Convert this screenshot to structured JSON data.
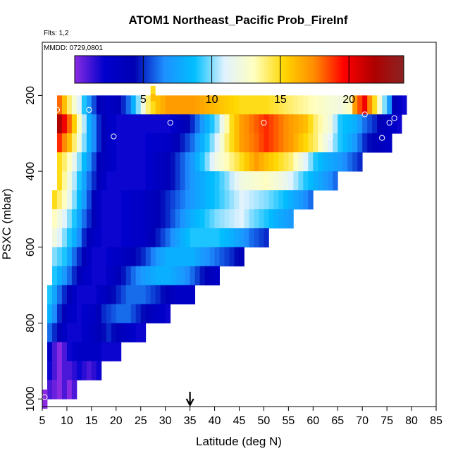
{
  "chart_data": {
    "type": "heatmap",
    "title": "ATOM1 Northeast_Pacific Prob_FireInf",
    "notes": [
      "Flts: 1,2",
      "MMDD: 0729,0801"
    ],
    "xlabel": "Latitude (deg N)",
    "ylabel": "PSXC (mbar)",
    "xlim": [
      5,
      85
    ],
    "ylim": [
      1020,
      60
    ],
    "y_reversed": true,
    "grid": false,
    "x_ticks": [
      5,
      10,
      15,
      20,
      25,
      30,
      35,
      40,
      45,
      50,
      55,
      60,
      65,
      70,
      75,
      80,
      85
    ],
    "y_ticks": [
      200,
      400,
      600,
      800,
      1000
    ],
    "colorbar": {
      "placement": "top-inside",
      "range": [
        0,
        24
      ],
      "ticks": [
        5,
        10,
        15,
        20
      ],
      "colors": [
        "#8a2be2",
        "#0000cd",
        "#0000b4",
        "#1e90ff",
        "#00bfff",
        "#e0f2ff",
        "#ffffc0",
        "#ffd700",
        "#ff8c00",
        "#ff0000",
        "#b00000",
        "#8b2323"
      ]
    },
    "marker_arrow_x": 35,
    "bin_width_deg": 1,
    "bin_height_mbar": 50,
    "pressure_bins": [
      {
        "p": 225,
        "x0": 8,
        "x1": 78,
        "pts": [
          [
            8,
            18
          ],
          [
            10,
            14
          ],
          [
            12,
            11
          ],
          [
            14,
            7
          ],
          [
            16,
            4
          ],
          [
            18,
            3
          ],
          [
            20,
            4
          ],
          [
            22,
            6
          ],
          [
            24,
            10
          ],
          [
            26,
            14
          ],
          [
            28,
            16
          ],
          [
            30,
            17
          ],
          [
            35,
            17
          ],
          [
            40,
            16
          ],
          [
            45,
            15
          ],
          [
            50,
            15
          ],
          [
            55,
            14
          ],
          [
            60,
            13
          ],
          [
            65,
            12
          ],
          [
            67,
            13
          ],
          [
            68,
            17
          ],
          [
            70,
            20
          ],
          [
            72,
            15
          ],
          [
            74,
            10
          ],
          [
            76,
            4
          ],
          [
            78,
            2
          ]
        ]
      },
      {
        "p": 275,
        "x0": 8,
        "x1": 77,
        "pts": [
          [
            8,
            22
          ],
          [
            10,
            18
          ],
          [
            12,
            13
          ],
          [
            14,
            8
          ],
          [
            16,
            5
          ],
          [
            18,
            3
          ],
          [
            20,
            2
          ],
          [
            22,
            2
          ],
          [
            25,
            2
          ],
          [
            28,
            2
          ],
          [
            30,
            2
          ],
          [
            35,
            5
          ],
          [
            40,
            10
          ],
          [
            43,
            15
          ],
          [
            45,
            17
          ],
          [
            50,
            19
          ],
          [
            55,
            17
          ],
          [
            58,
            16
          ],
          [
            60,
            14
          ],
          [
            63,
            12
          ],
          [
            65,
            9
          ],
          [
            68,
            8
          ],
          [
            70,
            6
          ],
          [
            72,
            5
          ],
          [
            75,
            3
          ],
          [
            77,
            2
          ]
        ]
      },
      {
        "p": 325,
        "x0": 8,
        "x1": 75,
        "pts": [
          [
            8,
            19
          ],
          [
            10,
            16
          ],
          [
            12,
            12
          ],
          [
            14,
            8
          ],
          [
            16,
            5
          ],
          [
            18,
            3
          ],
          [
            20,
            2
          ],
          [
            22,
            2
          ],
          [
            25,
            2
          ],
          [
            30,
            3
          ],
          [
            35,
            6
          ],
          [
            40,
            11
          ],
          [
            42,
            14
          ],
          [
            45,
            17
          ],
          [
            48,
            18
          ],
          [
            50,
            19
          ],
          [
            55,
            17
          ],
          [
            60,
            14
          ],
          [
            62,
            12
          ],
          [
            65,
            9
          ],
          [
            68,
            7
          ],
          [
            70,
            5
          ],
          [
            72,
            4
          ],
          [
            75,
            3
          ]
        ]
      },
      {
        "p": 375,
        "x0": 8,
        "x1": 69,
        "pts": [
          [
            8,
            15
          ],
          [
            10,
            13
          ],
          [
            12,
            10
          ],
          [
            14,
            7
          ],
          [
            16,
            4
          ],
          [
            18,
            3
          ],
          [
            20,
            2
          ],
          [
            25,
            2
          ],
          [
            30,
            4
          ],
          [
            35,
            7
          ],
          [
            38,
            10
          ],
          [
            40,
            12
          ],
          [
            45,
            15
          ],
          [
            48,
            17
          ],
          [
            50,
            16
          ],
          [
            55,
            14
          ],
          [
            58,
            11
          ],
          [
            60,
            9
          ],
          [
            62,
            8
          ],
          [
            65,
            7
          ],
          [
            67,
            6
          ],
          [
            69,
            5
          ]
        ]
      },
      {
        "p": 425,
        "x0": 8,
        "x1": 64,
        "pts": [
          [
            8,
            15
          ],
          [
            10,
            12
          ],
          [
            12,
            9
          ],
          [
            14,
            6
          ],
          [
            16,
            4
          ],
          [
            18,
            2
          ],
          [
            20,
            2
          ],
          [
            25,
            2
          ],
          [
            30,
            4
          ],
          [
            35,
            7
          ],
          [
            40,
            9
          ],
          [
            42,
            10
          ],
          [
            45,
            12
          ],
          [
            50,
            13
          ],
          [
            53,
            12
          ],
          [
            55,
            11
          ],
          [
            58,
            9
          ],
          [
            60,
            8
          ],
          [
            62,
            7
          ],
          [
            64,
            6
          ]
        ]
      },
      {
        "p": 475,
        "x0": 7,
        "x1": 59,
        "pts": [
          [
            7,
            15
          ],
          [
            9,
            13
          ],
          [
            11,
            10
          ],
          [
            13,
            7
          ],
          [
            15,
            4
          ],
          [
            17,
            2
          ],
          [
            20,
            2
          ],
          [
            25,
            3
          ],
          [
            30,
            5
          ],
          [
            35,
            7
          ],
          [
            40,
            9
          ],
          [
            45,
            11
          ],
          [
            50,
            10
          ],
          [
            53,
            9
          ],
          [
            55,
            8
          ],
          [
            57,
            7
          ],
          [
            59,
            6
          ]
        ]
      },
      {
        "p": 525,
        "x0": 7,
        "x1": 55,
        "pts": [
          [
            7,
            13
          ],
          [
            9,
            11
          ],
          [
            11,
            9
          ],
          [
            13,
            6
          ],
          [
            15,
            4
          ],
          [
            17,
            2
          ],
          [
            20,
            2
          ],
          [
            25,
            3
          ],
          [
            30,
            5
          ],
          [
            35,
            8
          ],
          [
            40,
            10
          ],
          [
            45,
            11
          ],
          [
            47,
            10
          ],
          [
            50,
            9
          ],
          [
            52,
            8
          ],
          [
            55,
            7
          ]
        ]
      },
      {
        "p": 575,
        "x0": 7,
        "x1": 50,
        "pts": [
          [
            7,
            12
          ],
          [
            9,
            10
          ],
          [
            11,
            8
          ],
          [
            13,
            5
          ],
          [
            15,
            3
          ],
          [
            17,
            2
          ],
          [
            20,
            2
          ],
          [
            25,
            3
          ],
          [
            30,
            6
          ],
          [
            33,
            8
          ],
          [
            35,
            9
          ],
          [
            40,
            9
          ],
          [
            43,
            8
          ],
          [
            45,
            7
          ],
          [
            47,
            6
          ],
          [
            50,
            5
          ]
        ]
      },
      {
        "p": 625,
        "x0": 7,
        "x1": 45,
        "pts": [
          [
            7,
            10
          ],
          [
            9,
            9
          ],
          [
            11,
            6
          ],
          [
            13,
            4
          ],
          [
            15,
            2
          ],
          [
            17,
            2
          ],
          [
            20,
            3
          ],
          [
            25,
            5
          ],
          [
            28,
            7
          ],
          [
            30,
            8
          ],
          [
            33,
            8
          ],
          [
            35,
            8
          ],
          [
            37,
            7
          ],
          [
            40,
            6
          ],
          [
            43,
            5
          ],
          [
            45,
            4
          ]
        ]
      },
      {
        "p": 675,
        "x0": 7,
        "x1": 40,
        "pts": [
          [
            7,
            9
          ],
          [
            9,
            7
          ],
          [
            11,
            5
          ],
          [
            13,
            3
          ],
          [
            15,
            2
          ],
          [
            17,
            2
          ],
          [
            20,
            4
          ],
          [
            23,
            6
          ],
          [
            25,
            7
          ],
          [
            28,
            8
          ],
          [
            30,
            8
          ],
          [
            33,
            7
          ],
          [
            35,
            6
          ],
          [
            38,
            4
          ],
          [
            40,
            3
          ]
        ]
      },
      {
        "p": 725,
        "x0": 6,
        "x1": 35,
        "pts": [
          [
            6,
            9
          ],
          [
            8,
            6
          ],
          [
            10,
            4
          ],
          [
            12,
            2
          ],
          [
            15,
            2
          ],
          [
            18,
            4
          ],
          [
            20,
            5
          ],
          [
            22,
            6
          ],
          [
            25,
            6
          ],
          [
            28,
            5
          ],
          [
            30,
            4
          ],
          [
            32,
            3
          ],
          [
            35,
            3
          ]
        ]
      },
      {
        "p": 775,
        "x0": 6,
        "x1": 30,
        "pts": [
          [
            6,
            8
          ],
          [
            8,
            5
          ],
          [
            10,
            3
          ],
          [
            12,
            2
          ],
          [
            15,
            3
          ],
          [
            17,
            5
          ],
          [
            20,
            6
          ],
          [
            22,
            6
          ],
          [
            24,
            5
          ],
          [
            26,
            4
          ],
          [
            28,
            3
          ],
          [
            30,
            2
          ]
        ]
      },
      {
        "p": 825,
        "x0": 6,
        "x1": 25,
        "pts": [
          [
            6,
            6
          ],
          [
            8,
            4
          ],
          [
            10,
            2
          ],
          [
            12,
            2
          ],
          [
            14,
            3
          ],
          [
            16,
            4
          ],
          [
            18,
            5
          ],
          [
            20,
            4
          ],
          [
            22,
            3
          ],
          [
            24,
            2
          ],
          [
            25,
            2
          ]
        ]
      },
      {
        "p": 875,
        "x0": 6,
        "x1": 20,
        "pts": [
          [
            6,
            3
          ],
          [
            7,
            1
          ],
          [
            8,
            0
          ],
          [
            9,
            1
          ],
          [
            10,
            2
          ],
          [
            12,
            3
          ],
          [
            14,
            3
          ],
          [
            16,
            3
          ],
          [
            17,
            2
          ],
          [
            19,
            2
          ],
          [
            20,
            2
          ]
        ]
      },
      {
        "p": 925,
        "x0": 6,
        "x1": 16,
        "pts": [
          [
            6,
            2
          ],
          [
            7,
            1
          ],
          [
            8,
            0
          ],
          [
            9,
            1
          ],
          [
            10,
            1
          ],
          [
            12,
            2
          ],
          [
            14,
            1
          ],
          [
            16,
            2
          ]
        ]
      },
      {
        "p": 975,
        "x0": 6,
        "x1": 11,
        "pts": [
          [
            6,
            1
          ],
          [
            8,
            0
          ],
          [
            9,
            1
          ],
          [
            10,
            0
          ],
          [
            11,
            1
          ]
        ]
      },
      {
        "p": 1000,
        "x0": 5,
        "x1": 5,
        "pts": [
          [
            5,
            0
          ]
        ]
      }
    ],
    "isolated_cells": [
      {
        "x": 27,
        "p": 185,
        "v": 15
      },
      {
        "x": 27,
        "p": 205,
        "v": 16
      }
    ],
    "open_circles": [
      {
        "x": 8,
        "p": 238
      },
      {
        "x": 14.5,
        "p": 238
      },
      {
        "x": 19.5,
        "p": 308
      },
      {
        "x": 31,
        "p": 272
      },
      {
        "x": 50,
        "p": 272
      },
      {
        "x": 63.5,
        "p": 308
      },
      {
        "x": 70.5,
        "p": 250
      },
      {
        "x": 74,
        "p": 312
      },
      {
        "x": 75.5,
        "p": 272
      },
      {
        "x": 76.5,
        "p": 260
      },
      {
        "x": 5.5,
        "p": 995
      }
    ]
  }
}
